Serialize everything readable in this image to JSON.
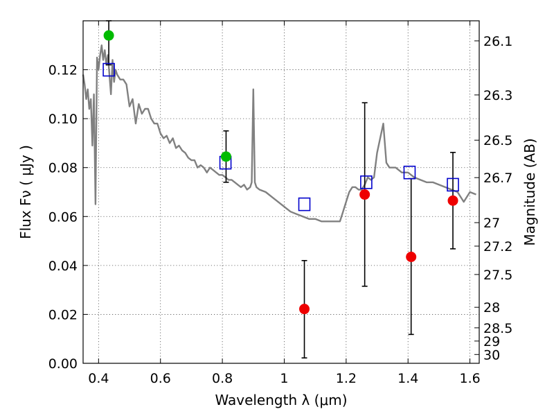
{
  "chart_data": {
    "type": "scatter",
    "xlabel": "Wavelength  λ (μm)",
    "ylabel": "Flux  Fν  ( μJy )",
    "ylabel_right": "Magnitude (AB)",
    "xlim": [
      0.35,
      1.63
    ],
    "ylim": [
      0.0,
      0.14
    ],
    "grid": true,
    "x_ticks": [
      0.4,
      0.6,
      0.8,
      1.0,
      1.2,
      1.4,
      1.6
    ],
    "x_tick_labels": [
      "0.4",
      "0.6",
      "0.8",
      "1",
      "1.2",
      "1.4",
      "1.6"
    ],
    "y_ticks": [
      0.0,
      0.02,
      0.04,
      0.06,
      0.08,
      0.1,
      0.12
    ],
    "y_tick_labels": [
      "0.00",
      "0.02",
      "0.04",
      "0.06",
      "0.08",
      "0.10",
      "0.12"
    ],
    "right_ticks": [
      {
        "label": "26.1",
        "flux": 0.1318
      },
      {
        "label": "26.3",
        "flux": 0.1097
      },
      {
        "label": "26.5",
        "flux": 0.0912
      },
      {
        "label": "26.7",
        "flux": 0.0759
      },
      {
        "label": "27",
        "flux": 0.0575
      },
      {
        "label": "27.2",
        "flux": 0.0479
      },
      {
        "label": "27.5",
        "flux": 0.0363
      },
      {
        "label": "28",
        "flux": 0.0229
      },
      {
        "label": "28.5",
        "flux": 0.0145
      },
      {
        "label": "29",
        "flux": 0.0091
      },
      {
        "label": "30",
        "flux": 0.0036
      }
    ],
    "colors": {
      "model": "#808080",
      "model_photometry": "#0000cc",
      "detection": "#00bb00",
      "upper": "#ee0000",
      "errorbar": "#000000"
    },
    "model_spectrum": {
      "x": [
        0.35,
        0.355,
        0.36,
        0.365,
        0.37,
        0.375,
        0.38,
        0.385,
        0.39,
        0.395,
        0.4,
        0.405,
        0.41,
        0.415,
        0.42,
        0.425,
        0.43,
        0.435,
        0.44,
        0.445,
        0.45,
        0.455,
        0.46,
        0.47,
        0.48,
        0.49,
        0.5,
        0.51,
        0.52,
        0.53,
        0.54,
        0.55,
        0.56,
        0.57,
        0.58,
        0.59,
        0.6,
        0.61,
        0.62,
        0.63,
        0.64,
        0.65,
        0.66,
        0.67,
        0.68,
        0.69,
        0.7,
        0.71,
        0.72,
        0.73,
        0.74,
        0.75,
        0.76,
        0.77,
        0.78,
        0.79,
        0.8,
        0.81,
        0.82,
        0.83,
        0.84,
        0.85,
        0.86,
        0.87,
        0.88,
        0.89,
        0.895,
        0.9,
        0.905,
        0.91,
        0.92,
        0.94,
        0.96,
        0.98,
        1.0,
        1.02,
        1.04,
        1.06,
        1.08,
        1.1,
        1.12,
        1.14,
        1.16,
        1.18,
        1.19,
        1.2,
        1.21,
        1.22,
        1.23,
        1.24,
        1.25,
        1.26,
        1.27,
        1.28,
        1.29,
        1.3,
        1.31,
        1.32,
        1.33,
        1.34,
        1.36,
        1.38,
        1.4,
        1.42,
        1.44,
        1.46,
        1.48,
        1.5,
        1.52,
        1.54,
        1.56,
        1.58,
        1.6,
        1.62
      ],
      "y": [
        0.118,
        0.114,
        0.108,
        0.112,
        0.104,
        0.108,
        0.089,
        0.11,
        0.065,
        0.125,
        0.12,
        0.126,
        0.13,
        0.124,
        0.128,
        0.122,
        0.126,
        0.118,
        0.11,
        0.124,
        0.115,
        0.12,
        0.118,
        0.116,
        0.116,
        0.114,
        0.105,
        0.108,
        0.098,
        0.106,
        0.102,
        0.104,
        0.104,
        0.1,
        0.098,
        0.098,
        0.094,
        0.092,
        0.093,
        0.09,
        0.092,
        0.088,
        0.089,
        0.087,
        0.086,
        0.084,
        0.083,
        0.083,
        0.08,
        0.081,
        0.08,
        0.078,
        0.08,
        0.079,
        0.078,
        0.077,
        0.077,
        0.076,
        0.075,
        0.075,
        0.074,
        0.073,
        0.072,
        0.073,
        0.071,
        0.072,
        0.074,
        0.112,
        0.074,
        0.072,
        0.071,
        0.07,
        0.068,
        0.066,
        0.064,
        0.062,
        0.061,
        0.06,
        0.059,
        0.059,
        0.058,
        0.058,
        0.058,
        0.058,
        0.062,
        0.066,
        0.07,
        0.072,
        0.072,
        0.071,
        0.071,
        0.073,
        0.076,
        0.075,
        0.076,
        0.086,
        0.092,
        0.098,
        0.082,
        0.08,
        0.08,
        0.078,
        0.078,
        0.076,
        0.075,
        0.074,
        0.074,
        0.073,
        0.072,
        0.071,
        0.07,
        0.066,
        0.07,
        0.069
      ]
    },
    "model_photometry": {
      "x": [
        0.433,
        0.81,
        1.065,
        1.265,
        1.405,
        1.545
      ],
      "y": [
        0.12,
        0.082,
        0.065,
        0.074,
        0.078,
        0.073
      ]
    },
    "detections": {
      "x": [
        0.433,
        0.812
      ],
      "y": [
        0.134,
        0.0845
      ],
      "err_low": [
        0.122,
        0.074
      ],
      "err_high": [
        0.14,
        0.095
      ]
    },
    "upper_points": {
      "x": [
        1.065,
        1.26,
        1.41,
        1.545
      ],
      "y": [
        0.0222,
        0.069,
        0.0435,
        0.0665
      ],
      "err_low": [
        0.0022,
        0.0315,
        0.0118,
        0.0468
      ],
      "err_high": [
        0.042,
        0.1065,
        0.0755,
        0.0862
      ]
    }
  }
}
